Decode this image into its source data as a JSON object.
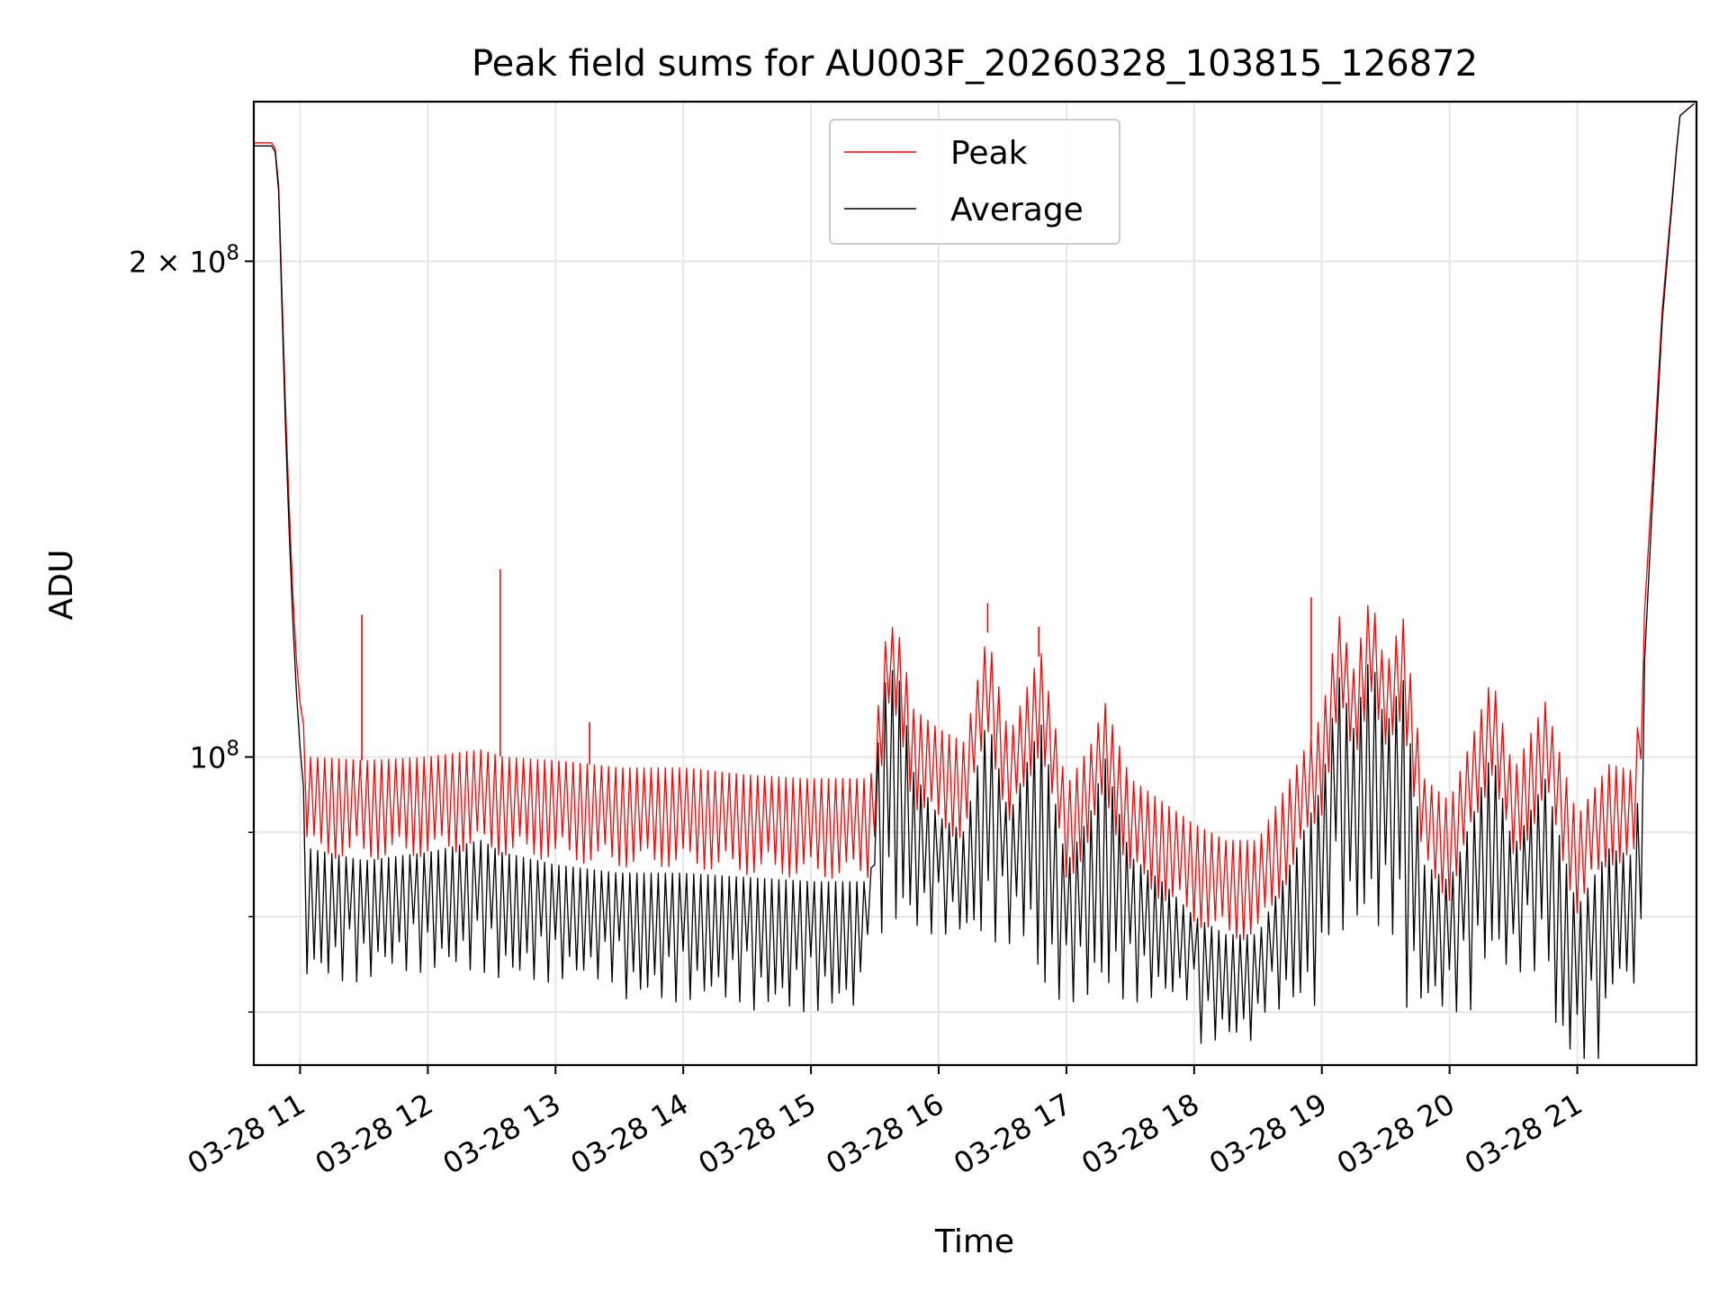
{
  "chart_data": {
    "type": "line",
    "title": "Peak field sums for AU003F_20260328_103815_126872",
    "xlabel": "Time",
    "ylabel": "ADU",
    "x_axis_type": "datetime",
    "xlim": [
      "2026-03-28T10:38:15",
      "2026-03-28T21:56:00"
    ],
    "ylim": [
      65000000,
      250000000
    ],
    "yscale": "log",
    "grid": true,
    "legend_position": "top-center",
    "x_ticks": [
      {
        "value": "2026-03-28T11:00",
        "label": "03-28 11"
      },
      {
        "value": "2026-03-28T12:00",
        "label": "03-28 12"
      },
      {
        "value": "2026-03-28T13:00",
        "label": "03-28 13"
      },
      {
        "value": "2026-03-28T14:00",
        "label": "03-28 14"
      },
      {
        "value": "2026-03-28T15:00",
        "label": "03-28 15"
      },
      {
        "value": "2026-03-28T16:00",
        "label": "03-28 16"
      },
      {
        "value": "2026-03-28T17:00",
        "label": "03-28 17"
      },
      {
        "value": "2026-03-28T18:00",
        "label": "03-28 18"
      },
      {
        "value": "2026-03-28T19:00",
        "label": "03-28 19"
      },
      {
        "value": "2026-03-28T20:00",
        "label": "03-28 20"
      },
      {
        "value": "2026-03-28T21:00",
        "label": "03-28 21"
      }
    ],
    "y_major_ticks": [
      {
        "value": 100000000,
        "base": "10",
        "exp": "8",
        "label": "10^8"
      },
      {
        "value": 200000000,
        "mantissa": "2 × ",
        "base": "10",
        "exp": "8",
        "label": "2 × 10^8"
      }
    ],
    "y_minor_ticks": [
      70000000,
      80000000,
      90000000
    ],
    "series": [
      {
        "name": "Peak",
        "color": "#ff0000",
        "points": [
          [
            "2026-03-28T10:38:15",
            236000000
          ],
          [
            "2026-03-28T10:48:00",
            236000000
          ],
          [
            "2026-03-28T10:50:00",
            222000000
          ],
          [
            "2026-03-28T10:53:00",
            165000000
          ],
          [
            "2026-03-28T10:56:00",
            130000000
          ],
          [
            "2026-03-28T10:59:00",
            110000000
          ],
          [
            "2026-03-28T11:04:00",
            100000000
          ],
          [
            "2026-03-28T11:30:00",
            99500000
          ],
          [
            "2026-03-28T12:00:00",
            100000000
          ],
          [
            "2026-03-28T12:25:00",
            101000000
          ],
          [
            "2026-03-28T12:35:00",
            100000000
          ],
          [
            "2026-03-28T13:00:00",
            99500000
          ],
          [
            "2026-03-28T13:30:00",
            98500000
          ],
          [
            "2026-03-28T14:00:00",
            98500000
          ],
          [
            "2026-03-28T14:30:00",
            97500000
          ],
          [
            "2026-03-28T15:00:00",
            97000000
          ],
          [
            "2026-03-28T15:28:00",
            97000000
          ],
          [
            "2026-03-28T15:30:00",
            103000000
          ],
          [
            "2026-03-28T15:36:00",
            121000000
          ],
          [
            "2026-03-28T15:42:00",
            118000000
          ],
          [
            "2026-03-28T15:48:00",
            107000000
          ],
          [
            "2026-03-28T16:00:00",
            104000000
          ],
          [
            "2026-03-28T16:12:00",
            102000000
          ],
          [
            "2026-03-28T16:23:00",
            119000000
          ],
          [
            "2026-03-28T16:33:00",
            103000000
          ],
          [
            "2026-03-28T16:48:00",
            116000000
          ],
          [
            "2026-03-28T17:00:00",
            96000000
          ],
          [
            "2026-03-28T17:12:00",
            102000000
          ],
          [
            "2026-03-28T17:18:00",
            108000000
          ],
          [
            "2026-03-28T17:30:00",
            97000000
          ],
          [
            "2026-03-28T17:45:00",
            94000000
          ],
          [
            "2026-03-28T18:00:00",
            91000000
          ],
          [
            "2026-03-28T18:15:00",
            89000000
          ],
          [
            "2026-03-28T18:30:00",
            89000000
          ],
          [
            "2026-03-28T18:45:00",
            97000000
          ],
          [
            "2026-03-28T19:00:00",
            106000000
          ],
          [
            "2026-03-28T19:08:00",
            122000000
          ],
          [
            "2026-03-28T19:15:00",
            113000000
          ],
          [
            "2026-03-28T19:23:00",
            126000000
          ],
          [
            "2026-03-28T19:30:00",
            113000000
          ],
          [
            "2026-03-28T19:38:00",
            122000000
          ],
          [
            "2026-03-28T19:48:00",
            97000000
          ],
          [
            "2026-03-28T20:00:00",
            94000000
          ],
          [
            "2026-03-28T20:12:00",
            104000000
          ],
          [
            "2026-03-28T20:20:00",
            112000000
          ],
          [
            "2026-03-28T20:30:00",
            98000000
          ],
          [
            "2026-03-28T20:45:00",
            108000000
          ],
          [
            "2026-03-28T21:00:00",
            92000000
          ],
          [
            "2026-03-28T21:15:00",
            99000000
          ],
          [
            "2026-03-28T21:27:00",
            98000000
          ],
          [
            "2026-03-28T21:35:00",
            145000000
          ],
          [
            "2026-03-28T21:40:00",
            188000000
          ],
          [
            "2026-03-28T21:48:00",
            245000000
          ],
          [
            "2026-03-28T21:56:00",
            250000000
          ]
        ],
        "spikes": [
          [
            "2026-03-28T11:29:00",
            122000000
          ],
          [
            "2026-03-28T12:34:00",
            130000000
          ],
          [
            "2026-03-28T13:16:00",
            105000000
          ],
          [
            "2026-03-28T16:23:00",
            124000000
          ],
          [
            "2026-03-28T16:47:00",
            120000000
          ],
          [
            "2026-03-28T18:55:00",
            125000000
          ]
        ]
      },
      {
        "name": "Average",
        "color": "#000000",
        "points": [
          [
            "2026-03-28T10:38:15",
            235000000
          ],
          [
            "2026-03-28T10:48:00",
            235000000
          ],
          [
            "2026-03-28T10:50:00",
            220000000
          ],
          [
            "2026-03-28T10:53:00",
            160000000
          ],
          [
            "2026-03-28T10:56:00",
            125000000
          ],
          [
            "2026-03-28T10:59:00",
            105000000
          ],
          [
            "2026-03-28T11:04:00",
            88000000
          ],
          [
            "2026-03-28T11:30:00",
            86500000
          ],
          [
            "2026-03-28T12:00:00",
            87500000
          ],
          [
            "2026-03-28T12:25:00",
            89000000
          ],
          [
            "2026-03-28T12:35:00",
            87500000
          ],
          [
            "2026-03-28T13:00:00",
            86000000
          ],
          [
            "2026-03-28T13:30:00",
            85000000
          ],
          [
            "2026-03-28T14:00:00",
            85000000
          ],
          [
            "2026-03-28T14:30:00",
            84500000
          ],
          [
            "2026-03-28T15:00:00",
            84000000
          ],
          [
            "2026-03-28T15:28:00",
            84000000
          ],
          [
            "2026-03-28T15:30:00",
            98000000
          ],
          [
            "2026-03-28T15:36:00",
            114000000
          ],
          [
            "2026-03-28T15:42:00",
            111000000
          ],
          [
            "2026-03-28T15:48:00",
            98000000
          ],
          [
            "2026-03-28T16:00:00",
            92000000
          ],
          [
            "2026-03-28T16:12:00",
            90000000
          ],
          [
            "2026-03-28T16:23:00",
            106000000
          ],
          [
            "2026-03-28T16:33:00",
            92000000
          ],
          [
            "2026-03-28T16:48:00",
            105000000
          ],
          [
            "2026-03-28T17:00:00",
            86000000
          ],
          [
            "2026-03-28T17:12:00",
            93000000
          ],
          [
            "2026-03-28T17:18:00",
            100000000
          ],
          [
            "2026-03-28T17:30:00",
            87000000
          ],
          [
            "2026-03-28T17:45:00",
            84000000
          ],
          [
            "2026-03-28T18:00:00",
            80000000
          ],
          [
            "2026-03-28T18:15:00",
            78000000
          ],
          [
            "2026-03-28T18:30:00",
            78000000
          ],
          [
            "2026-03-28T18:45:00",
            86000000
          ],
          [
            "2026-03-28T19:00:00",
            96000000
          ],
          [
            "2026-03-28T19:08:00",
            112000000
          ],
          [
            "2026-03-28T19:15:00",
            104000000
          ],
          [
            "2026-03-28T19:23:00",
            116000000
          ],
          [
            "2026-03-28T19:30:00",
            104000000
          ],
          [
            "2026-03-28T19:38:00",
            112000000
          ],
          [
            "2026-03-28T19:48:00",
            86000000
          ],
          [
            "2026-03-28T20:00:00",
            84000000
          ],
          [
            "2026-03-28T20:12:00",
            93000000
          ],
          [
            "2026-03-28T20:20:00",
            101000000
          ],
          [
            "2026-03-28T20:30:00",
            88000000
          ],
          [
            "2026-03-28T20:45:00",
            97000000
          ],
          [
            "2026-03-28T21:00:00",
            81000000
          ],
          [
            "2026-03-28T21:15:00",
            88000000
          ],
          [
            "2026-03-28T21:27:00",
            87000000
          ],
          [
            "2026-03-28T21:35:00",
            140000000
          ],
          [
            "2026-03-28T21:40:00",
            185000000
          ],
          [
            "2026-03-28T21:48:00",
            245000000
          ],
          [
            "2026-03-28T21:56:00",
            250000000
          ]
        ],
        "dips": [
          [
            "2026-03-28T11:10:00",
            73000000
          ],
          [
            "2026-03-28T12:00:00",
            74000000
          ],
          [
            "2026-03-28T13:00:00",
            73000000
          ],
          [
            "2026-03-28T14:00:00",
            71000000
          ],
          [
            "2026-03-28T15:00:00",
            70000000
          ],
          [
            "2026-03-28T15:50:00",
            78000000
          ],
          [
            "2026-03-28T16:30:00",
            77000000
          ],
          [
            "2026-03-28T17:00:00",
            71000000
          ],
          [
            "2026-03-28T17:45:00",
            71000000
          ],
          [
            "2026-03-28T18:20:00",
            67000000
          ],
          [
            "2026-03-28T18:45:00",
            70000000
          ],
          [
            "2026-03-28T19:20:00",
            78000000
          ],
          [
            "2026-03-28T19:50:00",
            70000000
          ],
          [
            "2026-03-28T20:30:00",
            74000000
          ],
          [
            "2026-03-28T21:05:00",
            65500000
          ],
          [
            "2026-03-28T21:25:00",
            72000000
          ]
        ]
      }
    ]
  }
}
